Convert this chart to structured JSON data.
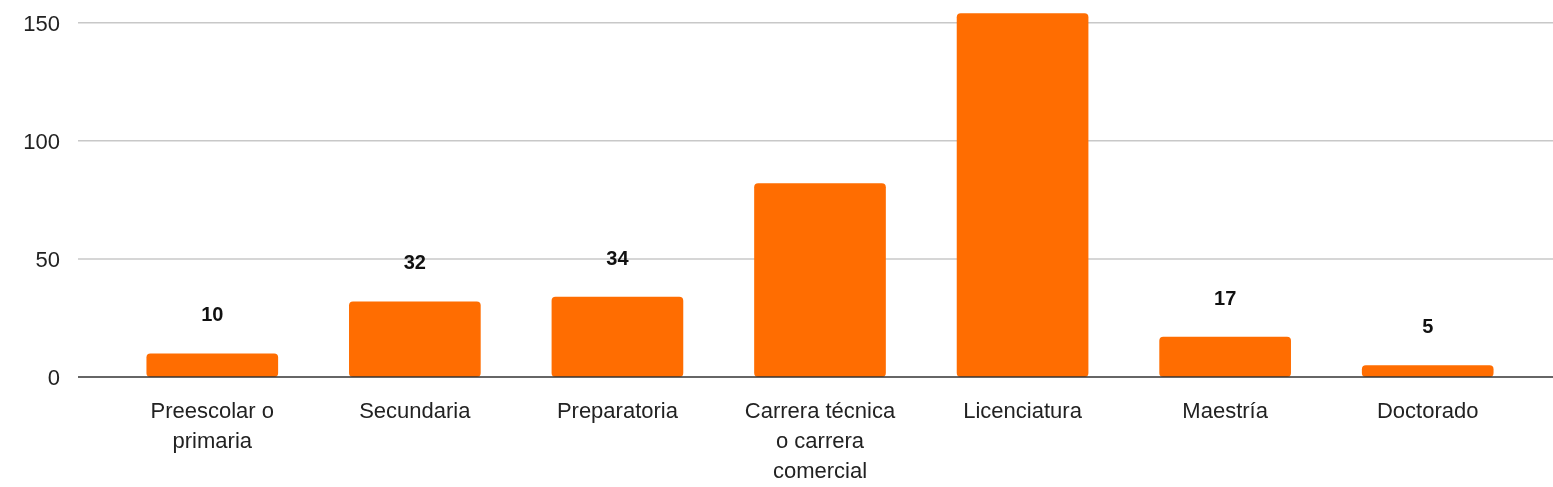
{
  "chart_data": {
    "type": "bar",
    "categories": [
      "Preescolar o primaria",
      "Secundaria",
      "Preparatoria",
      "Carrera técnica o carrera comercial",
      "Licenciatura",
      "Maestría",
      "Doctorado"
    ],
    "values": [
      10,
      32,
      34,
      82,
      154,
      17,
      5
    ],
    "value_labels": [
      "10",
      "32",
      "34",
      null,
      null,
      "17",
      "5"
    ],
    "color": "#ff6d01",
    "ylim": [
      0,
      155
    ],
    "yticks": [
      0,
      50,
      100,
      150
    ],
    "grid": "y"
  }
}
